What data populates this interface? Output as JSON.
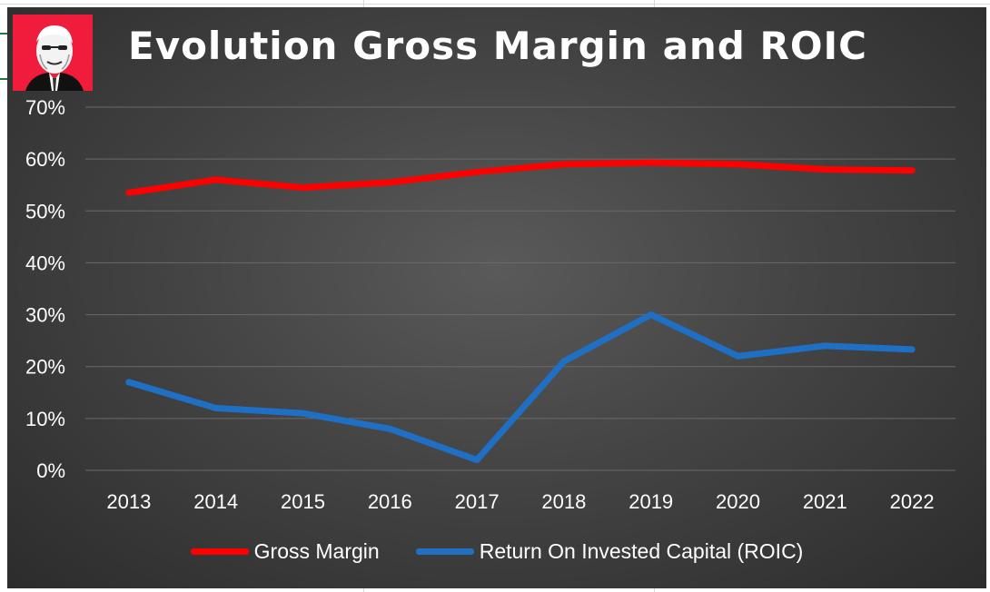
{
  "chart_data": {
    "type": "line",
    "title": "Evolution Gross Margin and ROIC",
    "categories": [
      "2013",
      "2014",
      "2015",
      "2016",
      "2017",
      "2018",
      "2019",
      "2020",
      "2021",
      "2022"
    ],
    "series": [
      {
        "name": "Gross Margin",
        "color": "#ff0000",
        "values": [
          53.5,
          56.0,
          54.5,
          55.5,
          57.5,
          59.0,
          59.3,
          59.0,
          58.0,
          57.8
        ]
      },
      {
        "name": "Return On Invested Capital (ROIC)",
        "color": "#1f6fc4",
        "values": [
          17.0,
          12.0,
          11.0,
          8.0,
          2.0,
          21.0,
          30.0,
          22.0,
          24.0,
          23.3
        ]
      }
    ],
    "yticks": [
      "0%",
      "10%",
      "20%",
      "30%",
      "40%",
      "50%",
      "60%",
      "70%"
    ],
    "ylim": [
      0,
      70
    ],
    "grid": true,
    "legend_position": "bottom",
    "background": "#444444",
    "text_color": "#ffffff"
  },
  "logo": {
    "icon": "portrait-icon",
    "color": "#f01c3c"
  }
}
